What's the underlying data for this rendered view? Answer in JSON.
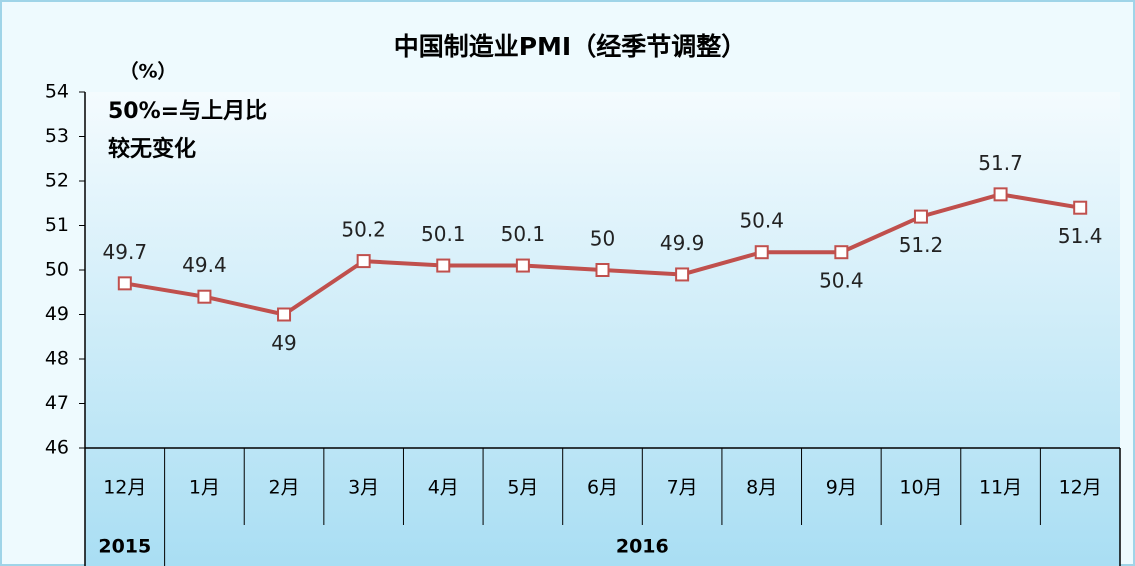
{
  "chart_data": {
    "type": "line",
    "title": "中国制造业PMI（经季节调整）",
    "y_unit": "（%）",
    "annotation": [
      "50%=与上月比",
      "较无变化"
    ],
    "categories": [
      "12月",
      "1月",
      "2月",
      "3月",
      "4月",
      "5月",
      "6月",
      "7月",
      "8月",
      "9月",
      "10月",
      "11月",
      "12月"
    ],
    "x_groups": [
      "2015",
      "2016"
    ],
    "series": [
      {
        "name": "PMI",
        "color": "#c0504d",
        "values": [
          49.7,
          49.4,
          49,
          50.2,
          50.1,
          50.1,
          50,
          49.9,
          50.4,
          50.4,
          51.2,
          51.7,
          51.4
        ]
      }
    ],
    "ylim": [
      46,
      54
    ],
    "yticks": [
      46,
      47,
      48,
      49,
      50,
      51,
      52,
      53,
      54
    ]
  }
}
